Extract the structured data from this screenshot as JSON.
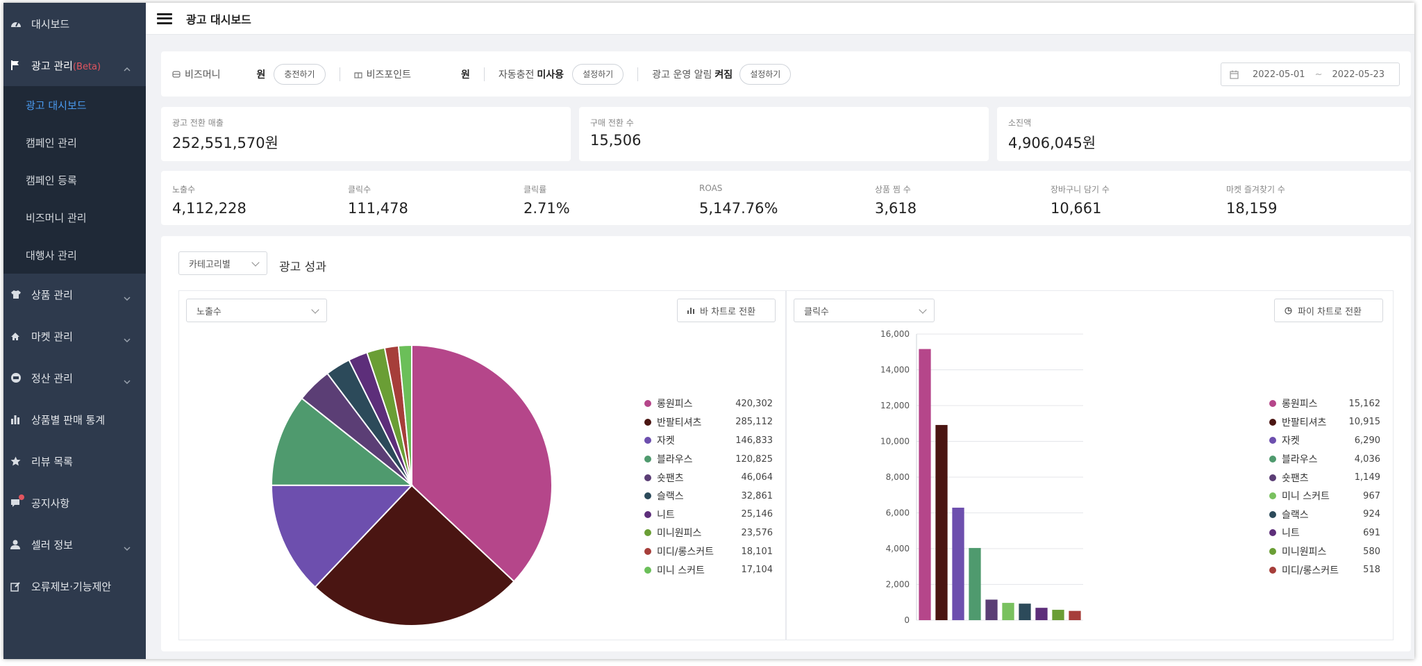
{
  "sidebar": {
    "items": [
      {
        "label": "대시보드",
        "icon": "dashboard-icon"
      },
      {
        "label": "광고 관리",
        "beta": "(Beta)",
        "icon": "flag-icon"
      },
      {
        "label": "상품 관리",
        "icon": "shirt-icon"
      },
      {
        "label": "마켓 관리",
        "icon": "home-icon"
      },
      {
        "label": "정산 관리",
        "icon": "settlement-icon"
      },
      {
        "label": "상품별 판매 통계",
        "icon": "bar-chart-icon"
      },
      {
        "label": "리뷰 목록",
        "icon": "star-icon"
      },
      {
        "label": "공지사항",
        "icon": "notice-icon"
      },
      {
        "label": "셀러 정보",
        "icon": "user-icon"
      },
      {
        "label": "오류제보·기능제안",
        "icon": "edit-icon"
      }
    ],
    "submenu": [
      "광고 대시보드",
      "캠페인 관리",
      "캠페인 등록",
      "비즈머니 관리",
      "대행사 관리"
    ]
  },
  "header": {
    "title": "광고 대시보드"
  },
  "wallet": {
    "bizmoney_label": "비즈머니",
    "bizmoney_unit": "원",
    "charge_label": "충전하기",
    "bizpoint_label": "비즈포인트",
    "bizpoint_unit": "원",
    "autocharge_label": "자동충전",
    "autocharge_status": "미사용",
    "autocharge_btn": "설정하기",
    "alert_label": "광고 운영 알림",
    "alert_status": "켜짐",
    "alert_btn": "설정하기",
    "date_from": "2022-05-01",
    "date_sep": "~",
    "date_to": "2022-05-23"
  },
  "kpis": [
    {
      "label": "광고 전환 매출",
      "value": "252,551,570원"
    },
    {
      "label": "구매 전환 수",
      "value": "15,506"
    },
    {
      "label": "소진액",
      "value": "4,906,045원"
    }
  ],
  "stats": [
    {
      "label": "노출수",
      "value": "4,112,228"
    },
    {
      "label": "클릭수",
      "value": "111,478"
    },
    {
      "label": "클릭률",
      "value": "2.71%"
    },
    {
      "label": "ROAS",
      "value": "5,147.76%"
    },
    {
      "label": "상품 찜 수",
      "value": "3,618"
    },
    {
      "label": "장바구니 담기 수",
      "value": "10,661"
    },
    {
      "label": "마켓 즐겨찾기 수",
      "value": "18,159"
    }
  ],
  "performance": {
    "group_select": "카테고리별",
    "title": "광고 성과",
    "left_metric": "노출수",
    "left_toggle": "바 차트로 전환",
    "right_metric": "클릭수",
    "right_toggle": "파이 차트로 전환"
  },
  "chart_data": [
    {
      "type": "pie",
      "metric": "노출수",
      "labels": [
        "롱원피스",
        "반팔티셔츠",
        "자켓",
        "블라우스",
        "숏팬츠",
        "슬랙스",
        "니트",
        "미니원피스",
        "미디/롱스커트",
        "미니 스커트"
      ],
      "values": [
        420302,
        285112,
        146833,
        120825,
        46064,
        32861,
        25146,
        23576,
        18101,
        17104
      ],
      "value_labels": [
        "420,302",
        "285,112",
        "146,833",
        "120,825",
        "46,064",
        "32,861",
        "25,146",
        "23,576",
        "18,101",
        "17,104"
      ],
      "colors": [
        "#b5468a",
        "#4a1512",
        "#6d4fae",
        "#4f9a6e",
        "#5b3e75",
        "#2c4a5a",
        "#5d2e7a",
        "#6a9e35",
        "#a63e3a",
        "#6bbf59"
      ],
      "legend_position": "right"
    },
    {
      "type": "bar",
      "metric": "클릭수",
      "categories": [
        "롱원피스",
        "반팔티셔츠",
        "자켓",
        "블라우스",
        "숏팬츠",
        "미니 스커트",
        "슬랙스",
        "니트",
        "미니원피스",
        "미디/롱스커트"
      ],
      "values": [
        15162,
        10915,
        6290,
        4036,
        1149,
        967,
        924,
        691,
        580,
        518
      ],
      "value_labels": [
        "15,162",
        "10,915",
        "6,290",
        "4,036",
        "1,149",
        "967",
        "924",
        "691",
        "580",
        "518"
      ],
      "colors": [
        "#b5468a",
        "#4a1512",
        "#6d4fae",
        "#4f9a6e",
        "#5b3e75",
        "#79c15f",
        "#2c4a5a",
        "#5d2e7a",
        "#6a9e35",
        "#a63e3a"
      ],
      "ylim": [
        0,
        16000
      ],
      "yticks": [
        "0",
        "2,000",
        "4,000",
        "6,000",
        "8,000",
        "10,000",
        "12,000",
        "14,000",
        "16,000"
      ],
      "grid": true,
      "legend_position": "right"
    }
  ]
}
